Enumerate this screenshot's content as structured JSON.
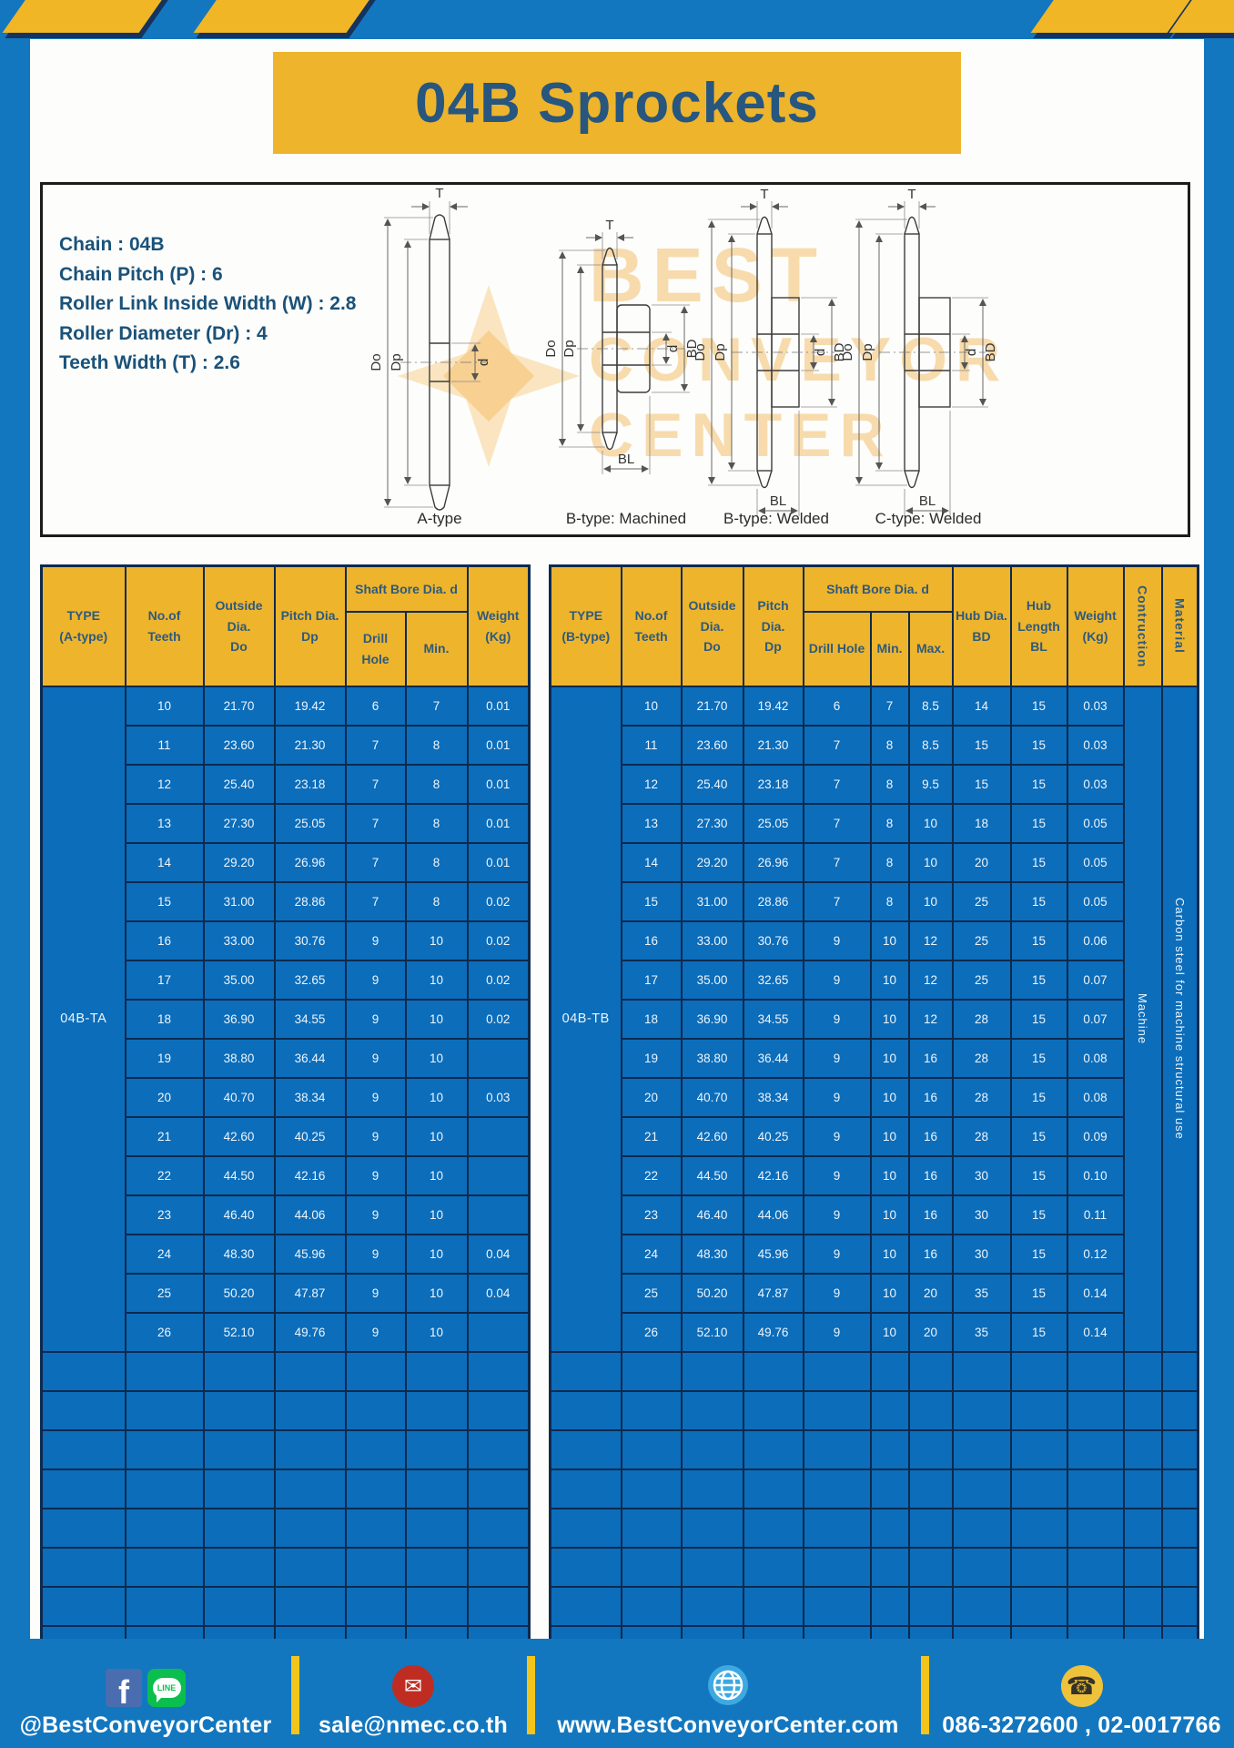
{
  "page": {
    "title": "04B Sprockets"
  },
  "specs": {
    "lines": [
      "Chain : 04B",
      "Chain Pitch (P) : 6",
      "Roller Link Inside Width (W) : 2.8",
      "Roller Diameter (Dr) : 4",
      "Teeth Width (T) : 2.6"
    ]
  },
  "watermark": {
    "lines": [
      "BEST",
      "CONVEYOR",
      "CENTER"
    ]
  },
  "drawings": {
    "captions": [
      "A-type",
      "B-type: Machined",
      "B-type: Welded",
      "C-type: Welded"
    ],
    "dims": {
      "t": "T",
      "do": "Do",
      "dp": "Dp",
      "d": "d",
      "bd": "BD",
      "bl": "BL"
    }
  },
  "table_a": {
    "header": {
      "type": [
        "TYPE",
        "(A-type)"
      ],
      "teeth": [
        "No.of",
        "Teeth"
      ],
      "outside": [
        "Outside",
        "Dia.",
        "Do"
      ],
      "pitch": [
        "Pitch Dia.",
        "Dp"
      ],
      "shaft_bore": "Shaft Bore Dia. d",
      "drill_hole": "Drill Hole",
      "min": "Min.",
      "weight": [
        "Weight",
        "(Kg)"
      ]
    },
    "type_label": "04B-TA",
    "rows": [
      [
        "10",
        "21.70",
        "19.42",
        "6",
        "7",
        "0.01"
      ],
      [
        "11",
        "23.60",
        "21.30",
        "7",
        "8",
        "0.01"
      ],
      [
        "12",
        "25.40",
        "23.18",
        "7",
        "8",
        "0.01"
      ],
      [
        "13",
        "27.30",
        "25.05",
        "7",
        "8",
        "0.01"
      ],
      [
        "14",
        "29.20",
        "26.96",
        "7",
        "8",
        "0.01"
      ],
      [
        "15",
        "31.00",
        "28.86",
        "7",
        "8",
        "0.02"
      ],
      [
        "16",
        "33.00",
        "30.76",
        "9",
        "10",
        "0.02"
      ],
      [
        "17",
        "35.00",
        "32.65",
        "9",
        "10",
        "0.02"
      ],
      [
        "18",
        "36.90",
        "34.55",
        "9",
        "10",
        "0.02"
      ],
      [
        "19",
        "38.80",
        "36.44",
        "9",
        "10",
        ""
      ],
      [
        "20",
        "40.70",
        "38.34",
        "9",
        "10",
        "0.03"
      ],
      [
        "21",
        "42.60",
        "40.25",
        "9",
        "10",
        ""
      ],
      [
        "22",
        "44.50",
        "42.16",
        "9",
        "10",
        ""
      ],
      [
        "23",
        "46.40",
        "44.06",
        "9",
        "10",
        ""
      ],
      [
        "24",
        "48.30",
        "45.96",
        "9",
        "10",
        "0.04"
      ],
      [
        "25",
        "50.20",
        "47.87",
        "9",
        "10",
        "0.04"
      ],
      [
        "26",
        "52.10",
        "49.76",
        "9",
        "10",
        ""
      ]
    ],
    "empty_rows": 8
  },
  "table_b": {
    "header": {
      "type": [
        "TYPE",
        "(B-type)"
      ],
      "teeth": [
        "No.of",
        "Teeth"
      ],
      "outside": [
        "Outside",
        "Dia.",
        "Do"
      ],
      "pitch": [
        "Pitch Dia.",
        "Dp"
      ],
      "shaft_bore": "Shaft Bore Dia. d",
      "drill_hole": "Drill Hole",
      "min": "Min.",
      "max": "Max.",
      "hub_dia": [
        "Hub Dia.",
        "BD"
      ],
      "hub_length": [
        "Hub",
        "Length",
        "BL"
      ],
      "weight": [
        "Weight",
        "(Kg)"
      ],
      "construction": "Contruction",
      "material": "Material"
    },
    "type_label": "04B-TB",
    "construction_value": "Machine",
    "material_value": "Carbon steel for machine structural use",
    "rows": [
      [
        "10",
        "21.70",
        "19.42",
        "6",
        "7",
        "8.5",
        "14",
        "15",
        "0.03"
      ],
      [
        "11",
        "23.60",
        "21.30",
        "7",
        "8",
        "8.5",
        "15",
        "15",
        "0.03"
      ],
      [
        "12",
        "25.40",
        "23.18",
        "7",
        "8",
        "9.5",
        "15",
        "15",
        "0.03"
      ],
      [
        "13",
        "27.30",
        "25.05",
        "7",
        "8",
        "10",
        "18",
        "15",
        "0.05"
      ],
      [
        "14",
        "29.20",
        "26.96",
        "7",
        "8",
        "10",
        "20",
        "15",
        "0.05"
      ],
      [
        "15",
        "31.00",
        "28.86",
        "7",
        "8",
        "10",
        "25",
        "15",
        "0.05"
      ],
      [
        "16",
        "33.00",
        "30.76",
        "9",
        "10",
        "12",
        "25",
        "15",
        "0.06"
      ],
      [
        "17",
        "35.00",
        "32.65",
        "9",
        "10",
        "12",
        "25",
        "15",
        "0.07"
      ],
      [
        "18",
        "36.90",
        "34.55",
        "9",
        "10",
        "12",
        "28",
        "15",
        "0.07"
      ],
      [
        "19",
        "38.80",
        "36.44",
        "9",
        "10",
        "16",
        "28",
        "15",
        "0.08"
      ],
      [
        "20",
        "40.70",
        "38.34",
        "9",
        "10",
        "16",
        "28",
        "15",
        "0.08"
      ],
      [
        "21",
        "42.60",
        "40.25",
        "9",
        "10",
        "16",
        "28",
        "15",
        "0.09"
      ],
      [
        "22",
        "44.50",
        "42.16",
        "9",
        "10",
        "16",
        "30",
        "15",
        "0.10"
      ],
      [
        "23",
        "46.40",
        "44.06",
        "9",
        "10",
        "16",
        "30",
        "15",
        "0.11"
      ],
      [
        "24",
        "48.30",
        "45.96",
        "9",
        "10",
        "16",
        "30",
        "15",
        "0.12"
      ],
      [
        "25",
        "50.20",
        "47.87",
        "9",
        "10",
        "20",
        "35",
        "15",
        "0.14"
      ],
      [
        "26",
        "52.10",
        "49.76",
        "9",
        "10",
        "20",
        "35",
        "15",
        "0.14"
      ]
    ],
    "empty_rows": 8
  },
  "footer": {
    "line_icon_label": "LINE",
    "items": [
      {
        "icon": "facebook-icon line-icon",
        "text": "@BestConveyorCenter"
      },
      {
        "icon": "email-icon",
        "text": "sale@nmec.co.th"
      },
      {
        "icon": "globe-icon",
        "text": "www.BestConveyorCenter.com"
      },
      {
        "icon": "phone-icon",
        "text": "086-3272600 , 02-0017766"
      }
    ]
  },
  "colors": {
    "page_blue": "#1377bf",
    "cell_blue": "#0c6dba",
    "accent_yellow": "#eeb42c",
    "border_navy": "#0d2a4e",
    "title_text": "#27567f"
  }
}
